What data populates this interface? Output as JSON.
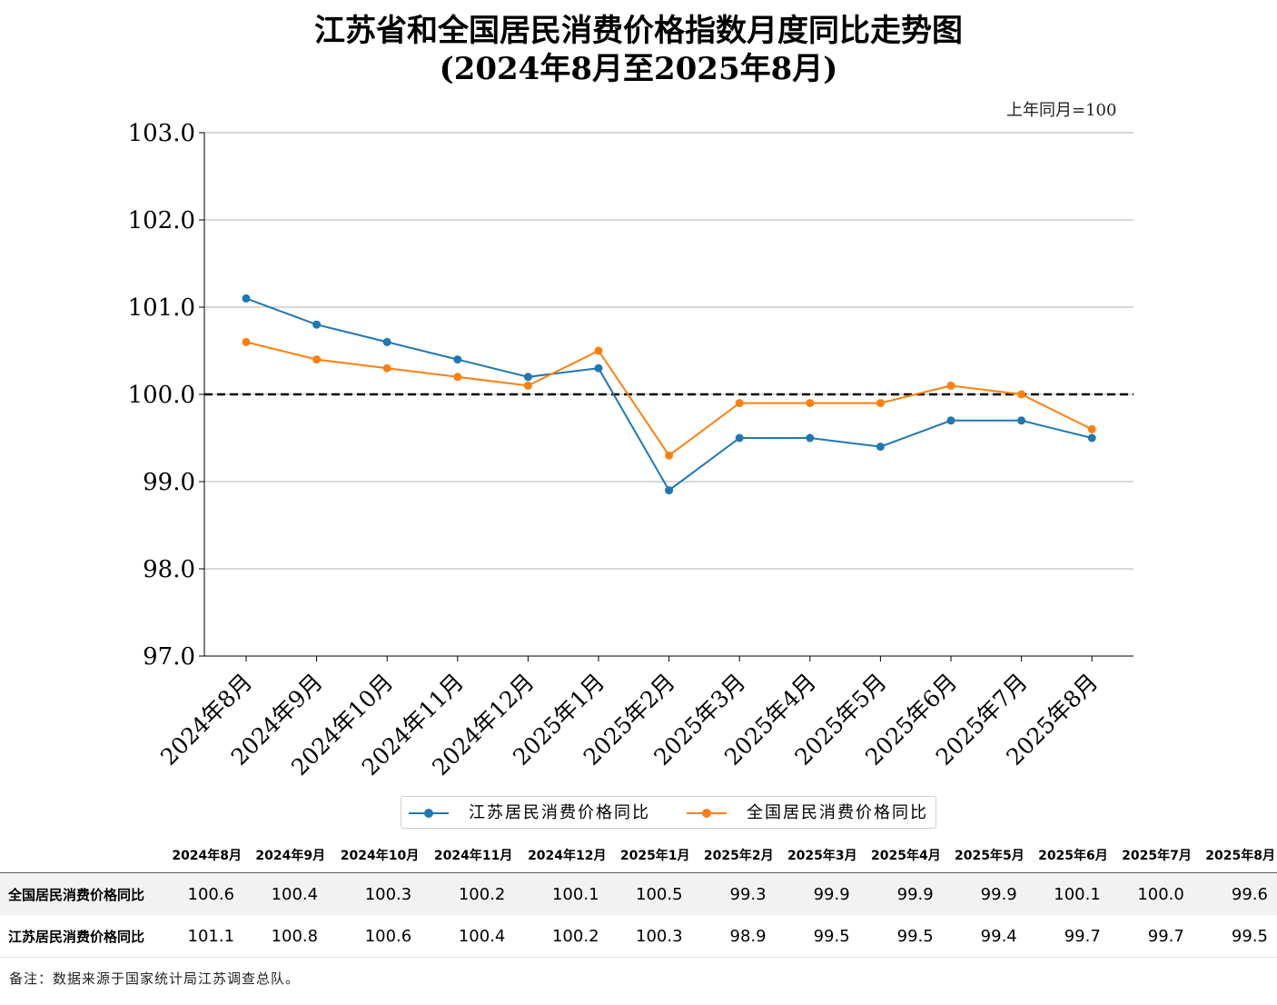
{
  "title_line1": "江苏省和全国居民消费价格指数月度同比走势图",
  "title_line2": "(2024年8月至2025年8月)",
  "unit_note": "上年同月=100",
  "footnote": "备注：数据来源于国家统计局江苏调查总队。",
  "chart_data": {
    "type": "line",
    "categories": [
      "2024年8月",
      "2024年9月",
      "2024年10月",
      "2024年11月",
      "2024年12月",
      "2025年1月",
      "2025年2月",
      "2025年3月",
      "2025年4月",
      "2025年5月",
      "2025年6月",
      "2025年7月",
      "2025年8月"
    ],
    "series": [
      {
        "name": "江苏居民消费价格同比",
        "color": "#1f77b4",
        "values": [
          101.1,
          100.8,
          100.6,
          100.4,
          100.2,
          100.3,
          98.9,
          99.5,
          99.5,
          99.4,
          99.7,
          99.7,
          99.5
        ]
      },
      {
        "name": "全国居民消费价格同比",
        "color": "#ff7f0e",
        "values": [
          100.6,
          100.4,
          100.3,
          100.2,
          100.1,
          100.5,
          99.3,
          99.9,
          99.9,
          99.9,
          100.1,
          100.0,
          99.6
        ]
      }
    ],
    "ylim": [
      97.0,
      103.0
    ],
    "yticks": [
      "97.0",
      "98.0",
      "99.0",
      "100.0",
      "101.0",
      "102.0",
      "103.0"
    ],
    "reference_line": 100.0,
    "grid": "horizontal",
    "legend_position": "bottom"
  },
  "table": {
    "headers": [
      "2024年8月",
      "2024年9月",
      "2024年10月",
      "2024年11月",
      "2024年12月",
      "2025年1月",
      "2025年2月",
      "2025年3月",
      "2025年4月",
      "2025年5月",
      "2025年6月",
      "2025年7月",
      "2025年8月"
    ],
    "rows": [
      {
        "label": "全国居民消费价格同比",
        "values": [
          "100.6",
          "100.4",
          "100.3",
          "100.2",
          "100.1",
          "100.5",
          "99.3",
          "99.9",
          "99.9",
          "99.9",
          "100.1",
          "100.0",
          "99.6"
        ]
      },
      {
        "label": "江苏居民消费价格同比",
        "values": [
          "101.1",
          "100.8",
          "100.6",
          "100.4",
          "100.2",
          "100.3",
          "98.9",
          "99.5",
          "99.5",
          "99.4",
          "99.7",
          "99.7",
          "99.5"
        ]
      }
    ]
  }
}
